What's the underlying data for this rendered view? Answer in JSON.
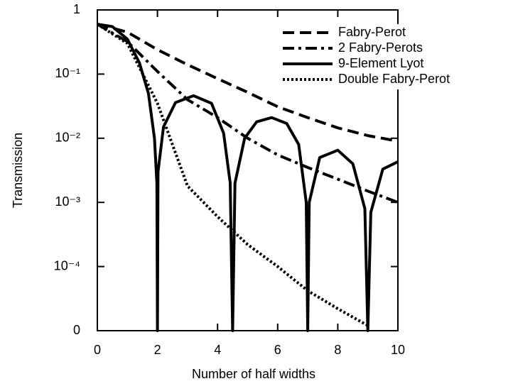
{
  "chart_data": {
    "type": "line",
    "x_label": "Number of half widths",
    "y_label": "Transmission",
    "log_y": true,
    "xlim": [
      0,
      10
    ],
    "xticks": [
      0,
      2,
      4,
      6,
      8,
      10
    ],
    "ylim": [
      1e-05,
      1
    ],
    "yticks": [
      {
        "value": 1,
        "label": "1"
      },
      {
        "value": 0.1,
        "label": "10⁻¹"
      },
      {
        "value": 0.01,
        "label": "10⁻²"
      },
      {
        "value": 0.001,
        "label": "10⁻³"
      },
      {
        "value": 0.0001,
        "label": "10⁻⁴"
      },
      {
        "value": 1e-05,
        "label": "0"
      }
    ],
    "legend": "top-right",
    "series": [
      {
        "name": "Fabry-Perot",
        "color": "#000000",
        "style": "dashed",
        "x": [
          0,
          1,
          2,
          3,
          4,
          5,
          6,
          7,
          8,
          9,
          10
        ],
        "values": [
          0.6,
          0.45,
          0.24,
          0.14,
          0.085,
          0.052,
          0.031,
          0.021,
          0.0145,
          0.011,
          0.009
        ]
      },
      {
        "name": "2 Fabry-Perots",
        "color": "#000000",
        "style": "dashdot",
        "x": [
          0,
          1,
          2,
          3,
          4,
          5,
          6,
          7,
          8,
          9,
          10
        ],
        "values": [
          0.6,
          0.32,
          0.11,
          0.04,
          0.021,
          0.01,
          0.0055,
          0.0035,
          0.0023,
          0.0015,
          0.001
        ]
      },
      {
        "name": "9-Element Lyot",
        "color": "#000000",
        "style": "solid",
        "x": [
          0,
          0.5,
          1,
          1.4,
          1.7,
          1.9,
          1.98,
          2,
          2.02,
          2.2,
          2.6,
          3.2,
          3.8,
          4.2,
          4.42,
          4.5,
          4.58,
          4.9,
          5.3,
          5.8,
          6.3,
          6.7,
          6.95,
          7,
          7.05,
          7.4,
          8,
          8.5,
          8.9,
          9,
          9.1,
          9.5,
          10
        ],
        "values": [
          0.6,
          0.55,
          0.35,
          0.15,
          0.05,
          0.01,
          0.002,
          1e-05,
          0.003,
          0.015,
          0.036,
          0.046,
          0.035,
          0.012,
          0.002,
          1e-05,
          0.002,
          0.01,
          0.018,
          0.021,
          0.017,
          0.008,
          0.001,
          1e-05,
          0.001,
          0.005,
          0.0065,
          0.004,
          0.0008,
          1e-05,
          0.0007,
          0.0033,
          0.0043
        ]
      },
      {
        "name": "Double Fabry-Perot",
        "color": "#000000",
        "style": "dotted",
        "x": [
          0,
          1,
          2,
          3,
          4,
          5,
          6,
          7,
          8,
          9
        ],
        "values": [
          0.6,
          0.3,
          0.035,
          0.0018,
          0.0006,
          0.00022,
          0.0001,
          4.2e-05,
          2.2e-05,
          1.2e-05
        ]
      }
    ]
  }
}
